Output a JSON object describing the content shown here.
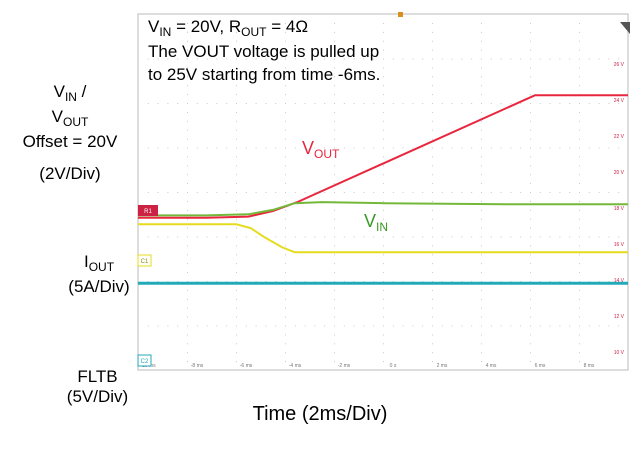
{
  "chart_data": {
    "type": "line",
    "title_line1": "V_IN = 20V, R_OUT = 4Ω",
    "note_line1": "The VOUT voltage is pulled up",
    "note_line2": "to 25V starting from time -6ms.",
    "xlabel": "Time (2ms/Div)",
    "x_ticks": [
      "-10 ms",
      "-8 ms",
      "-6 ms",
      "-4 ms",
      "-2 ms",
      "0 s",
      "2 ms",
      "4 ms",
      "6 ms",
      "8 ms"
    ],
    "right_ticks": [
      "26 V",
      "24 V",
      "22 V",
      "20 V",
      "18 V",
      "16 V",
      "14 V",
      "12 V",
      "10 V"
    ],
    "xlim": [
      -10,
      10
    ],
    "grid": true,
    "channel_labels": {
      "vin_vout_line1": "V",
      "vin_vout_sub1": "IN",
      "vin_vout_sep": " /",
      "vin_vout_line2": "V",
      "vin_vout_sub2": "OUT",
      "vin_vout_offset": "Offset = 20V",
      "vin_vout_scale": "(2V/Div)",
      "iout_main": "I",
      "iout_sub": "OUT",
      "iout_scale": "(5A/Div)",
      "fltb_main": "FLTB",
      "fltb_scale": "(5V/Div)"
    },
    "trace_labels": {
      "vout_main": "V",
      "vout_sub": "OUT",
      "vin_main": "V",
      "vin_sub": "IN"
    },
    "markers": {
      "ch1": "C1",
      "ch2": "C2",
      "r1": "R1"
    },
    "series": [
      {
        "name": "VOUT",
        "color": "#e8273f",
        "unit": "V",
        "x": [
          -10,
          -7.2,
          -5.5,
          -4.5,
          -3.5,
          6.2,
          9.6,
          10
        ],
        "y": [
          19.7,
          19.7,
          19.75,
          20.0,
          20.4,
          25.2,
          25.2,
          25.2
        ]
      },
      {
        "name": "VIN",
        "color": "#74b83a",
        "unit": "V",
        "x": [
          -10,
          -7.2,
          -5.5,
          -4.5,
          -3.6,
          -2.5,
          0,
          5,
          10
        ],
        "y": [
          19.8,
          19.8,
          19.85,
          20.05,
          20.35,
          20.4,
          20.35,
          20.3,
          20.3
        ]
      },
      {
        "name": "IOUT",
        "color": "#e6dc1e",
        "unit": "div",
        "x": [
          -10,
          -6.0,
          -5.4,
          -4.8,
          -4.1,
          -3.6,
          10
        ],
        "y": [
          1.9,
          1.9,
          1.7,
          1.2,
          0.7,
          0.45,
          0.45
        ]
      },
      {
        "name": "FLTB",
        "color": "#22aab8",
        "unit": "div",
        "x": [
          -10,
          10
        ],
        "y": [
          -1.15,
          -1.15
        ]
      }
    ]
  },
  "colors": {
    "vout": "#e8273f",
    "vin": "#74b83a",
    "iout": "#e6dc1e",
    "fltb": "#22aab8",
    "trigger": "#d9901e",
    "ref": "#cc2244"
  }
}
